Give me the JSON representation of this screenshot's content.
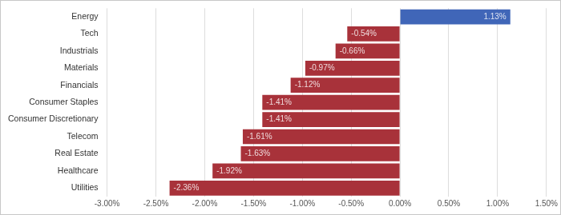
{
  "chart_data": {
    "type": "bar",
    "orientation": "horizontal",
    "categories": [
      "Energy",
      "Tech",
      "Industrials",
      "Materials",
      "Financials",
      "Consumer Staples",
      "Consumer Discretionary",
      "Telecom",
      "Real Estate",
      "Healthcare",
      "Utilities"
    ],
    "values": [
      1.13,
      -0.54,
      -0.66,
      -0.97,
      -1.12,
      -1.41,
      -1.41,
      -1.61,
      -1.63,
      -1.92,
      -2.36
    ],
    "value_labels": [
      "1.13%",
      "-0.54%",
      "-0.66%",
      "-0.97%",
      "-1.12%",
      "-1.41%",
      "-1.41%",
      "-1.61%",
      "-1.63%",
      "-1.92%",
      "-2.36%"
    ],
    "colors": [
      "#4066b8",
      "#a8323a",
      "#a8323a",
      "#a8323a",
      "#a8323a",
      "#a8323a",
      "#a8323a",
      "#a8323a",
      "#a8323a",
      "#a8323a",
      "#a8323a"
    ],
    "xlim": [
      -3,
      1.5
    ],
    "xticks": [
      {
        "value": -3,
        "label": "-3.00%"
      },
      {
        "value": -2.5,
        "label": "-2.50%"
      },
      {
        "value": -2,
        "label": "-2.00%"
      },
      {
        "value": -1.5,
        "label": "-1.50%"
      },
      {
        "value": -1,
        "label": "-1.00%"
      },
      {
        "value": -0.5,
        "label": "-0.50%"
      },
      {
        "value": 0,
        "label": "0.00%"
      },
      {
        "value": 0.5,
        "label": "0.50%"
      },
      {
        "value": 1,
        "label": "1.00%"
      },
      {
        "value": 1.5,
        "label": "1.50%"
      }
    ],
    "grid": true,
    "data_labels": true
  }
}
